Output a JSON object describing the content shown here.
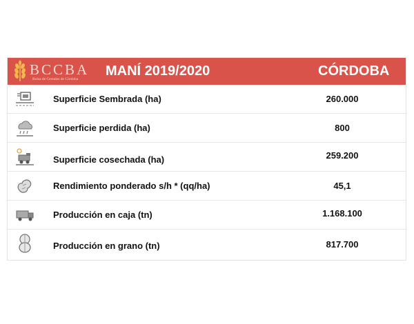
{
  "header": {
    "logo_text": "BCCBA",
    "logo_subtitle": "Bolsa de Cereales de Córdoba",
    "title": "MANÍ 2019/2020",
    "region": "CÓRDOBA",
    "color": "#d9534a"
  },
  "rows": [
    {
      "label": "Superficie Sembrada (ha)",
      "value": "260.000",
      "icon": "planting-icon"
    },
    {
      "label": "Superficie perdida (ha)",
      "value": "800",
      "icon": "storm-cloud-icon"
    },
    {
      "label": "Superficie cosechada (ha)",
      "value": "259.200",
      "icon": "harvester-icon"
    },
    {
      "label": "Rendimiento ponderado s/h * (qq/ha)",
      "value": "45,1",
      "icon": "peanut-icon"
    },
    {
      "label": "Producción en caja (tn)",
      "value": "1.168.100",
      "icon": "truck-icon"
    },
    {
      "label": "Producción en grano (tn)",
      "value": "817.700",
      "icon": "peanut-grain-icon"
    }
  ]
}
